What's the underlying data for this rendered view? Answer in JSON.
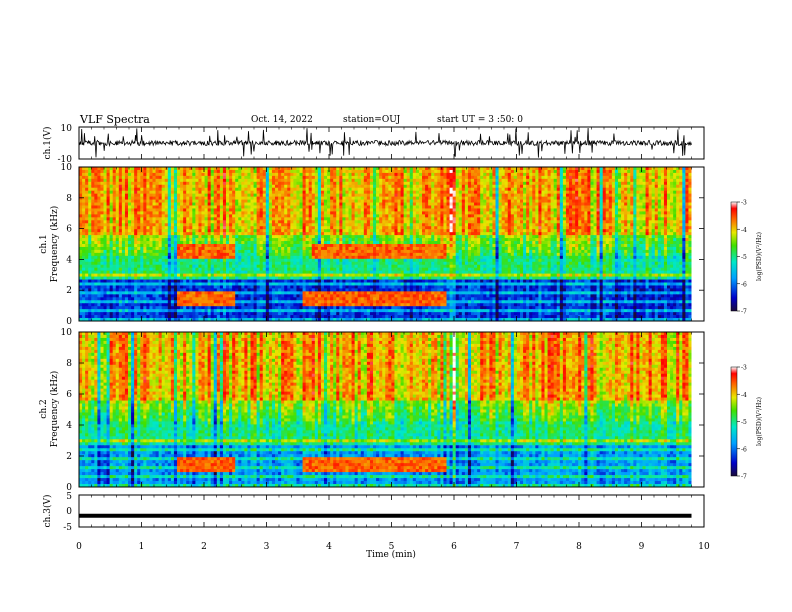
{
  "header": {
    "title": "VLF Spectra",
    "date": "Oct. 14, 2022",
    "station": "station=OUJ",
    "start": "start UT =  3 :50: 0"
  },
  "chart_data": {
    "type": "heatmap",
    "title": "VLF Spectra",
    "xlabel": "Time (min)",
    "xlim": [
      0,
      10
    ],
    "xticks": [
      "0",
      "1",
      "2",
      "3",
      "4",
      "5",
      "6",
      "7",
      "8",
      "9",
      "10"
    ],
    "panels": [
      {
        "id": "ch1v",
        "type": "line",
        "ylabel": "ch.1(V)",
        "ylim": [
          -10,
          10
        ],
        "yticks": [
          "10",
          "-10"
        ],
        "description_level": "noisy waveform around 0 V with spikes, data ends at 9.8 min"
      },
      {
        "id": "ch1s",
        "type": "heatmap",
        "ylabel": "ch.1\nFrequency (kHz)",
        "ylim": [
          0,
          10
        ],
        "yticks": [
          "0",
          "2",
          "4",
          "6",
          "8",
          "10"
        ],
        "features": [
          {
            "t": [
              1.55,
              2.45
            ],
            "f": 4.5,
            "label": "band"
          },
          {
            "t": [
              3.7,
              5.85
            ],
            "f": 4.5,
            "label": "band"
          },
          {
            "t": [
              1.55,
              2.45
            ],
            "f": 1.5,
            "label": "band"
          },
          {
            "t": [
              3.55,
              5.85
            ],
            "f": 1.5,
            "label": "band"
          }
        ]
      },
      {
        "id": "ch2s",
        "type": "heatmap",
        "ylabel": "ch.2\nFrequency (kHz)",
        "ylim": [
          0,
          10
        ],
        "yticks": [
          "0",
          "2",
          "4",
          "6",
          "8",
          "10"
        ],
        "features": [
          {
            "t": [
              1.55,
              2.45
            ],
            "f": 1.5,
            "label": "band"
          },
          {
            "t": [
              3.55,
              5.85
            ],
            "f": 1.5,
            "label": "band"
          }
        ]
      },
      {
        "id": "ch3v",
        "type": "line",
        "ylabel": "ch.3(V)",
        "ylim": [
          -5,
          5
        ],
        "yticks": [
          "5",
          "0",
          "-5"
        ],
        "constant_value": -1.5
      }
    ],
    "colorbar": {
      "label": "log(PSD)(V²/Hz)",
      "ticks": [
        "-3",
        "-4",
        "-5",
        "-6",
        "-7"
      ],
      "range": [
        -7,
        -3
      ]
    },
    "data_end_min": 9.8
  }
}
